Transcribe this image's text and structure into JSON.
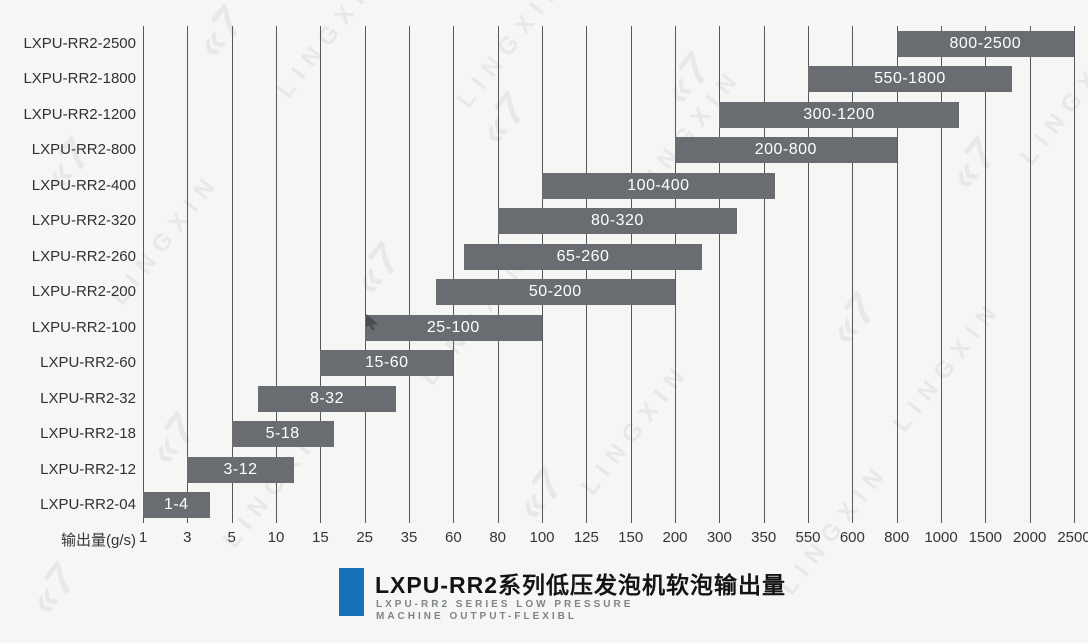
{
  "watermark": {
    "brand": "LINGXIN",
    "logo_glyph": "«7"
  },
  "chart_data": {
    "type": "bar",
    "orientation": "horizontal-range",
    "title": "LXPU-RR2系列低压发泡机软泡输出量",
    "subtitle_line1": "LXPU-RR2 SERIES LOW PRESSURE",
    "subtitle_line2": "MACHINE OUTPUT-FLEXIBL",
    "xlabel": "输出量(g/s)",
    "x_scale": "piecewise-linear-over-ticks",
    "x_ticks": [
      1,
      3,
      5,
      10,
      15,
      25,
      35,
      60,
      80,
      100,
      125,
      150,
      200,
      300,
      350,
      550,
      600,
      800,
      1000,
      1500,
      2000,
      2500
    ],
    "grid": true,
    "legend": "none",
    "bar_color": "#696c70",
    "bar_text_color": "#ffffff",
    "accent_color": "#1470b8",
    "rows": [
      {
        "category": "LXPU-RR2-2500",
        "start": 800,
        "end": 2500,
        "label": "800-2500"
      },
      {
        "category": "LXPU-RR2-1800",
        "start": 550,
        "end": 1800,
        "label": "550-1800"
      },
      {
        "category": "LXPU-RR2-1200",
        "start": 300,
        "end": 1200,
        "label": "300-1200"
      },
      {
        "category": "LXPU-RR2-800",
        "start": 200,
        "end": 800,
        "label": "200-800"
      },
      {
        "category": "LXPU-RR2-400",
        "start": 100,
        "end": 400,
        "label": "100-400"
      },
      {
        "category": "LXPU-RR2-320",
        "start": 80,
        "end": 320,
        "label": "80-320"
      },
      {
        "category": "LXPU-RR2-260",
        "start": 65,
        "end": 260,
        "label": "65-260"
      },
      {
        "category": "LXPU-RR2-200",
        "start": 50,
        "end": 200,
        "label": "50-200"
      },
      {
        "category": "LXPU-RR2-100",
        "start": 25,
        "end": 100,
        "label": "25-100"
      },
      {
        "category": "LXPU-RR2-60",
        "start": 15,
        "end": 60,
        "label": "15-60"
      },
      {
        "category": "LXPU-RR2-32",
        "start": 8,
        "end": 32,
        "label": "8-32"
      },
      {
        "category": "LXPU-RR2-18",
        "start": 5,
        "end": 18,
        "label": "5-18"
      },
      {
        "category": "LXPU-RR2-12",
        "start": 3,
        "end": 12,
        "label": "3-12"
      },
      {
        "category": "LXPU-RR2-04",
        "start": 1,
        "end": 4,
        "label": "1-4"
      }
    ]
  }
}
